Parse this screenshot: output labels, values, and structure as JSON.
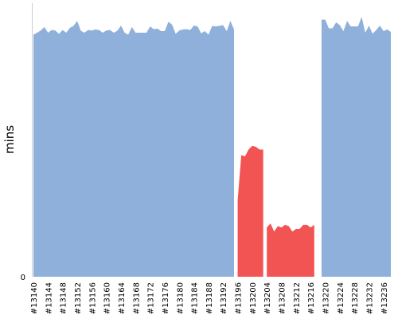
{
  "chart_data": {
    "type": "area",
    "title": "",
    "xlabel": "",
    "ylabel": "mins",
    "ylim": [
      0,
      100
    ],
    "y_ticks": [
      "0"
    ],
    "grid": false,
    "legend": "none",
    "x_tick_labels": [
      "#13140",
      "#13144",
      "#13148",
      "#13152",
      "#13156",
      "#13160",
      "#13164",
      "#13168",
      "#13172",
      "#13176",
      "#13180",
      "#13184",
      "#13188",
      "#13192",
      "#13196",
      "#13200",
      "#13204",
      "#13208",
      "#13212",
      "#13216",
      "#13220",
      "#13224",
      "#13228",
      "#13232",
      "#13236"
    ],
    "x_start": 13140,
    "x_end": 13238,
    "series": [
      {
        "color": "#8eb0da",
        "status": "success",
        "segments": [
          [
            [
              13140,
              88.5
            ],
            [
              13141,
              89.2
            ],
            [
              13142,
              90.0
            ],
            [
              13143,
              91.3
            ],
            [
              13144,
              89.2
            ],
            [
              13145,
              90.2
            ],
            [
              13146,
              90.0
            ],
            [
              13147,
              88.8
            ],
            [
              13148,
              90.2
            ],
            [
              13149,
              89.2
            ],
            [
              13150,
              91.0
            ],
            [
              13151,
              91.7
            ],
            [
              13152,
              93.5
            ],
            [
              13153,
              89.9
            ],
            [
              13154,
              89.2
            ],
            [
              13155,
              90.2
            ],
            [
              13156,
              90.0
            ],
            [
              13157,
              90.4
            ],
            [
              13158,
              90.2
            ],
            [
              13159,
              89.2
            ],
            [
              13160,
              90.0
            ],
            [
              13161,
              90.2
            ],
            [
              13162,
              89.2
            ],
            [
              13163,
              89.9
            ],
            [
              13164,
              91.8
            ],
            [
              13165,
              89.2
            ],
            [
              13166,
              88.5
            ],
            [
              13167,
              91.3
            ],
            [
              13168,
              89.2
            ],
            [
              13169,
              89.2
            ],
            [
              13170,
              89.2
            ],
            [
              13171,
              89.2
            ],
            [
              13172,
              91.5
            ],
            [
              13173,
              90.5
            ],
            [
              13174,
              90.7
            ],
            [
              13175,
              89.8
            ],
            [
              13176,
              89.8
            ],
            [
              13177,
              93.2
            ],
            [
              13178,
              92.2
            ],
            [
              13179,
              88.8
            ],
            [
              13180,
              90.0
            ],
            [
              13181,
              90.4
            ],
            [
              13182,
              90.5
            ],
            [
              13183,
              90.2
            ],
            [
              13184,
              91.8
            ],
            [
              13185,
              91.5
            ],
            [
              13186,
              89.0
            ],
            [
              13187,
              89.8
            ],
            [
              13188,
              88.5
            ],
            [
              13189,
              91.7
            ],
            [
              13190,
              91.5
            ],
            [
              13191,
              91.7
            ],
            [
              13192,
              92.0
            ],
            [
              13193,
              89.8
            ],
            [
              13194,
              93.5
            ],
            [
              13195,
              90.4
            ]
          ],
          [
            [
              13219,
              94.0
            ],
            [
              13220,
              94.0
            ],
            [
              13221,
              90.8
            ],
            [
              13222,
              90.8
            ],
            [
              13223,
              93.0
            ],
            [
              13224,
              92.0
            ],
            [
              13225,
              89.8
            ],
            [
              13226,
              93.5
            ],
            [
              13227,
              91.5
            ],
            [
              13228,
              91.5
            ],
            [
              13229,
              91.5
            ],
            [
              13230,
              95.0
            ],
            [
              13231,
              89.2
            ],
            [
              13232,
              91.8
            ],
            [
              13233,
              88.8
            ],
            [
              13234,
              90.2
            ],
            [
              13235,
              91.8
            ],
            [
              13236,
              89.8
            ],
            [
              13237,
              90.4
            ],
            [
              13238,
              89.5
            ]
          ]
        ]
      },
      {
        "color": "#f25353",
        "status": "failed",
        "segments": [
          [
            [
              13196,
              28.0
            ],
            [
              13197,
              44.5
            ],
            [
              13198,
              44.0
            ],
            [
              13199,
              46.5
            ],
            [
              13200,
              47.9
            ],
            [
              13201,
              47.5
            ],
            [
              13202,
              46.5
            ],
            [
              13203,
              46.5
            ]
          ],
          [
            [
              13204,
              18.0
            ],
            [
              13205,
              19.5
            ],
            [
              13206,
              16.5
            ],
            [
              13207,
              18.5
            ],
            [
              13208,
              18.0
            ],
            [
              13209,
              19.0
            ],
            [
              13210,
              18.5
            ],
            [
              13211,
              16.5
            ],
            [
              13212,
              17.5
            ],
            [
              13213,
              17.5
            ],
            [
              13214,
              19.0
            ],
            [
              13215,
              19.0
            ],
            [
              13216,
              18.0
            ],
            [
              13217,
              19.0
            ]
          ]
        ]
      }
    ]
  }
}
